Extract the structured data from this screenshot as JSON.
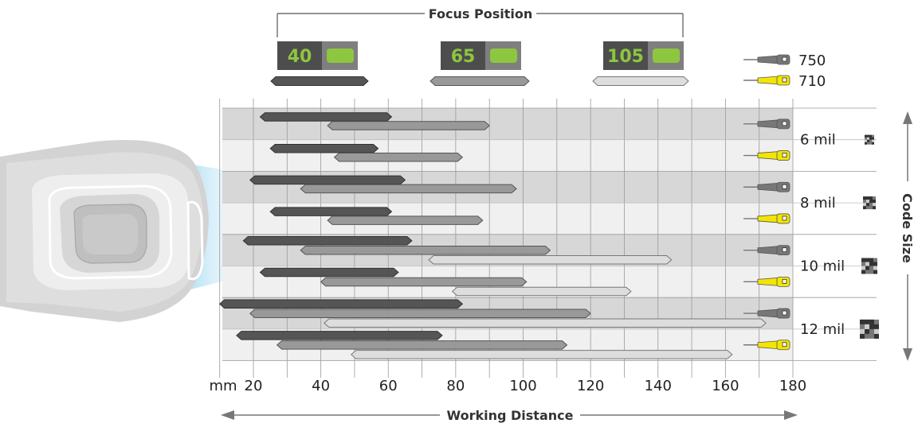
{
  "chart_data": {
    "type": "bar",
    "title": "Focus Position",
    "xlabel": "Working Distance",
    "ylabel": "Code Size",
    "x_unit": "mm",
    "xlim": [
      10,
      180
    ],
    "xticks": [
      20,
      40,
      60,
      80,
      100,
      120,
      140,
      160,
      180
    ],
    "focus_positions": [
      {
        "label": "40",
        "color": "#555555"
      },
      {
        "label": "65",
        "color": "#999999"
      },
      {
        "label": "105",
        "color": "#dddddd"
      }
    ],
    "scanner_models": [
      {
        "label": "750",
        "color": "#777777"
      },
      {
        "label": "710",
        "color": "#f2e600"
      }
    ],
    "code_sizes": [
      "6 mil",
      "8 mil",
      "10 mil",
      "12 mil"
    ],
    "ranges": [
      {
        "code_size": "6 mil",
        "model": "750",
        "bars": [
          [
            22,
            61
          ],
          [
            42,
            90
          ]
        ]
      },
      {
        "code_size": "6 mil",
        "model": "710",
        "bars": [
          [
            25,
            57
          ],
          [
            44,
            82
          ]
        ]
      },
      {
        "code_size": "8 mil",
        "model": "750",
        "bars": [
          [
            19,
            65
          ],
          [
            34,
            98
          ]
        ]
      },
      {
        "code_size": "8 mil",
        "model": "710",
        "bars": [
          [
            25,
            61
          ],
          [
            42,
            88
          ]
        ]
      },
      {
        "code_size": "10 mil",
        "model": "750",
        "bars": [
          [
            17,
            67
          ],
          [
            34,
            108
          ],
          [
            72,
            144
          ]
        ]
      },
      {
        "code_size": "10 mil",
        "model": "710",
        "bars": [
          [
            22,
            63
          ],
          [
            40,
            101
          ],
          [
            79,
            132
          ]
        ]
      },
      {
        "code_size": "12 mil",
        "model": "750",
        "bars": [
          [
            10,
            82
          ],
          [
            19,
            120
          ],
          [
            41,
            172
          ]
        ]
      },
      {
        "code_size": "12 mil",
        "model": "710",
        "bars": [
          [
            15,
            76
          ],
          [
            27,
            113
          ],
          [
            49,
            162
          ]
        ]
      }
    ],
    "grid": true
  }
}
